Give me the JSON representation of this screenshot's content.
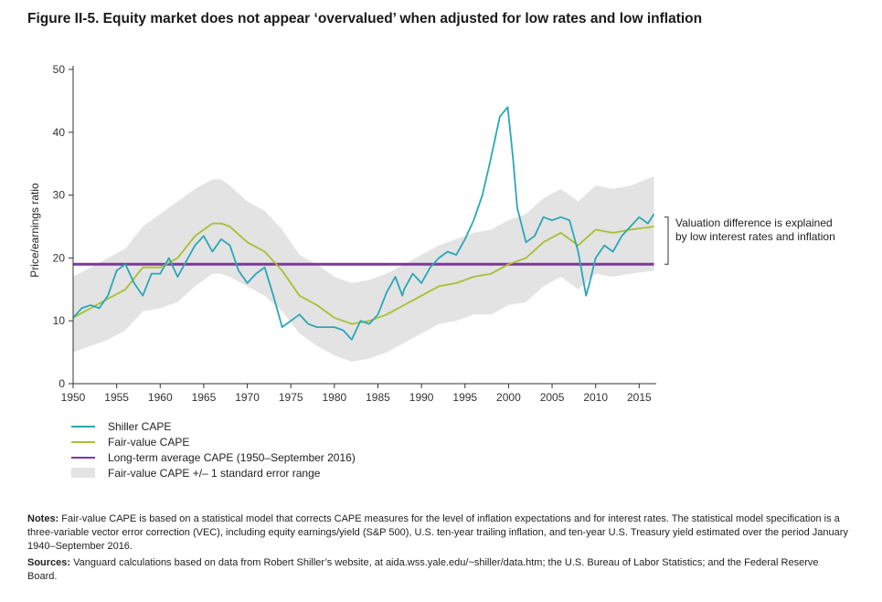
{
  "figure_title": "Figure II-5. Equity market does not appear ‘overvalued’ when adjusted for low rates and low inflation",
  "colors": {
    "shiller": "#2aa7b8",
    "fair_value": "#a7c031",
    "long_term_avg": "#7a3a96",
    "band": "#e3e3e3"
  },
  "chart_data": {
    "type": "line",
    "ylabel": "Price/earnings ratio",
    "xlabel": "",
    "xlim": [
      1950,
      2016.75
    ],
    "ylim": [
      0,
      50
    ],
    "xticks": [
      1950,
      1955,
      1960,
      1965,
      1970,
      1975,
      1980,
      1985,
      1990,
      1995,
      2000,
      2005,
      2010,
      2015
    ],
    "yticks": [
      0,
      10,
      20,
      30,
      40,
      50
    ],
    "grid": false,
    "annotation": [
      "Valuation difference is explained",
      "by low interest rates and inflation"
    ],
    "series": [
      {
        "name": "Shiller CAPE",
        "x": [
          1950,
          1951,
          1952,
          1953,
          1954,
          1955,
          1956,
          1957,
          1958,
          1959,
          1960,
          1961,
          1962,
          1963,
          1964,
          1965,
          1966,
          1967,
          1968,
          1969,
          1970,
          1971,
          1972,
          1973,
          1974,
          1975,
          1976,
          1977,
          1978,
          1979,
          1980,
          1981,
          1982,
          1983,
          1984,
          1985,
          1986,
          1987,
          1987.8,
          1988,
          1989,
          1990,
          1991,
          1992,
          1993,
          1994,
          1995,
          1996,
          1997,
          1998,
          1999,
          1999.9,
          2000.5,
          2001,
          2002,
          2003,
          2004,
          2005,
          2006,
          2007,
          2008,
          2008.9,
          2009.3,
          2010,
          2011,
          2012,
          2013,
          2014,
          2015,
          2016,
          2016.7
        ],
        "y": [
          10.5,
          12,
          12.5,
          12,
          14,
          18,
          19,
          16,
          14,
          17.5,
          17.5,
          20,
          17,
          19.5,
          22,
          23.5,
          21,
          23,
          22,
          18,
          16,
          17.5,
          18.5,
          14,
          9,
          10,
          11,
          9.5,
          9,
          9,
          9,
          8.5,
          7,
          10,
          9.5,
          11,
          14.5,
          17,
          14,
          15,
          17.5,
          16,
          18.5,
          20,
          21,
          20.5,
          23,
          26,
          30,
          36,
          42.5,
          44,
          36,
          28,
          22.5,
          23.5,
          26.5,
          26,
          26.5,
          26,
          21,
          14,
          16,
          20,
          22,
          21,
          23.5,
          25,
          26.5,
          25.5,
          27
        ]
      },
      {
        "name": "Fair-value CAPE",
        "x": [
          1950,
          1952,
          1954,
          1956,
          1958,
          1960,
          1962,
          1964,
          1966,
          1967,
          1968,
          1970,
          1972,
          1974,
          1976,
          1978,
          1980,
          1982,
          1984,
          1986,
          1988,
          1990,
          1992,
          1994,
          1996,
          1998,
          2000,
          2002,
          2004,
          2006,
          2008,
          2010,
          2012,
          2014,
          2016.7
        ],
        "y": [
          10.5,
          12,
          13.5,
          15,
          18.5,
          18.5,
          20,
          23.5,
          25.5,
          25.5,
          25,
          22.5,
          21,
          18,
          14,
          12.5,
          10.5,
          9.5,
          10,
          11,
          12.5,
          14,
          15.5,
          16,
          17,
          17.5,
          19,
          20,
          22.5,
          24,
          22,
          24.5,
          24,
          24.5,
          25
        ]
      },
      {
        "name": "Long-term average CAPE (1950–September 2016)",
        "x": [
          1950,
          2016.7
        ],
        "y": [
          19,
          19
        ]
      }
    ],
    "band": {
      "name": "Fair-value CAPE +/– 1 standard error range",
      "x": [
        1950,
        1952,
        1954,
        1956,
        1958,
        1960,
        1962,
        1964,
        1966,
        1967,
        1968,
        1970,
        1972,
        1974,
        1976,
        1978,
        1980,
        1982,
        1984,
        1986,
        1988,
        1990,
        1992,
        1994,
        1996,
        1998,
        2000,
        2002,
        2004,
        2006,
        2008,
        2010,
        2012,
        2014,
        2016.7
      ],
      "upper": [
        17,
        18.5,
        20,
        21.5,
        25,
        27,
        29,
        31,
        32.5,
        32.5,
        31.5,
        29,
        27.5,
        24.5,
        20.5,
        19,
        17,
        16,
        16.5,
        17.5,
        19,
        20.5,
        22,
        23,
        24,
        24.5,
        26,
        27,
        29.5,
        31,
        29,
        31.5,
        31,
        31.5,
        33
      ],
      "lower": [
        5,
        6,
        7,
        8.5,
        11.5,
        12,
        13,
        15.5,
        17.5,
        17.5,
        17,
        15.5,
        14,
        11.5,
        8,
        6,
        4.5,
        3.5,
        4,
        5,
        6.5,
        8,
        9.5,
        10,
        11,
        11,
        12.5,
        13,
        15.5,
        17,
        15,
        17.5,
        17,
        17.5,
        18
      ]
    }
  },
  "legend": {
    "shiller": "Shiller CAPE",
    "fair_value": "Fair-value CAPE",
    "long_term_avg": "Long-term average CAPE (1950–September 2016)",
    "band": "Fair-value CAPE +/– 1 standard error range"
  },
  "notes": {
    "notes_label": "Notes:",
    "notes_text": " Fair-value CAPE is based on a statistical model that corrects CAPE measures for the level of inflation expectations and for interest rates. The statistical model specification is a three-variable vector error correction (VEC), including equity earnings/yield (S&P 500), U.S. ten-year trailing inflation, and ten-year U.S. Treasury yield estimated over the period January 1940–September 2016.",
    "sources_label": "Sources:",
    "sources_text": " Vanguard calculations based on data from Robert Shiller’s website, at aida.wss.yale.edu/~shiller/data.htm; the U.S. Bureau of Labor Statistics; and the Federal Reserve Board."
  }
}
